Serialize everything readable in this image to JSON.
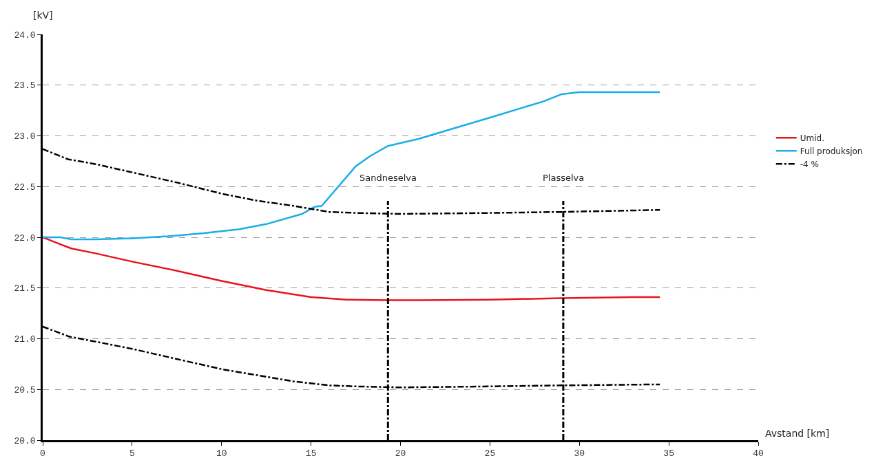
{
  "chart_data": {
    "type": "line",
    "xlabel": "Avstand [km]",
    "ylabel": "[kV]",
    "xlim": [
      0,
      40
    ],
    "xticks": [
      0,
      5,
      10,
      15,
      20,
      25,
      30,
      35,
      40
    ],
    "ylim": [
      20,
      24
    ],
    "yticks": [
      {
        "value": 20,
        "label": "20.0"
      },
      {
        "value": 20.5,
        "label": "20.5"
      },
      {
        "value": 21,
        "label": "21.0"
      },
      {
        "value": 21.5,
        "label": "21.5"
      },
      {
        "value": 22,
        "label": "22.0"
      },
      {
        "value": 22.5,
        "label": "22.5"
      },
      {
        "value": 23,
        "label": "23.0"
      },
      {
        "value": 23.5,
        "label": "23.5"
      },
      {
        "value": 24,
        "label": "24.0"
      }
    ],
    "grid": "y",
    "legend": "right",
    "marker": "none",
    "series": [
      {
        "name": "Umid.",
        "color": "#e8141b",
        "line_style": "solid",
        "x": [
          0,
          1,
          1.6,
          3,
          5,
          7.5,
          10,
          12.5,
          15,
          17,
          19.3,
          21,
          25,
          29,
          33,
          34.5
        ],
        "values": [
          22.0,
          21.93,
          21.89,
          21.84,
          21.76,
          21.67,
          21.57,
          21.48,
          21.41,
          21.385,
          21.38,
          21.38,
          21.385,
          21.4,
          21.41,
          21.41
        ]
      },
      {
        "name": "Full produksjon",
        "color": "#1aaee5",
        "line_style": "solid",
        "x": [
          0,
          1,
          1.6,
          3,
          5,
          7,
          9,
          11,
          12.5,
          14.5,
          15.2,
          15.6,
          17.5,
          18.3,
          19.3,
          21,
          25,
          28,
          29,
          30,
          34.5
        ],
        "values": [
          22.0,
          22.0,
          21.98,
          21.98,
          21.99,
          22.01,
          22.04,
          22.08,
          22.13,
          22.23,
          22.3,
          22.31,
          22.7,
          22.8,
          22.9,
          22.97,
          23.18,
          23.34,
          23.41,
          23.43,
          23.43
        ]
      },
      {
        "name": "-4 %",
        "color": "#000000",
        "line_style": "dashdot",
        "x": [
          0,
          1.5,
          3,
          5,
          7.5,
          10,
          12,
          14,
          16,
          17.5,
          20,
          25,
          29,
          34.5
        ],
        "values": [
          21.12,
          21.02,
          20.97,
          20.9,
          20.8,
          20.7,
          20.64,
          20.58,
          20.54,
          20.53,
          20.52,
          20.53,
          20.54,
          20.55
        ]
      },
      {
        "color": "#000000",
        "line_style": "dashdot",
        "x": [
          0,
          1.4,
          3,
          5,
          7.5,
          10,
          12,
          14,
          16,
          17.5,
          20,
          25,
          29,
          34.5
        ],
        "values": [
          22.87,
          22.77,
          22.72,
          22.64,
          22.54,
          22.43,
          22.36,
          22.31,
          22.25,
          22.24,
          22.23,
          22.24,
          22.25,
          22.27
        ]
      }
    ],
    "ref_lines": [
      {
        "axis": "x",
        "value": 19.3,
        "label": "Sandneselva",
        "color": "#000000",
        "line_style": "dashdot"
      },
      {
        "axis": "x",
        "value": 29.1,
        "label": "Plasselva",
        "color": "#000000",
        "line_style": "dashdot"
      }
    ]
  }
}
